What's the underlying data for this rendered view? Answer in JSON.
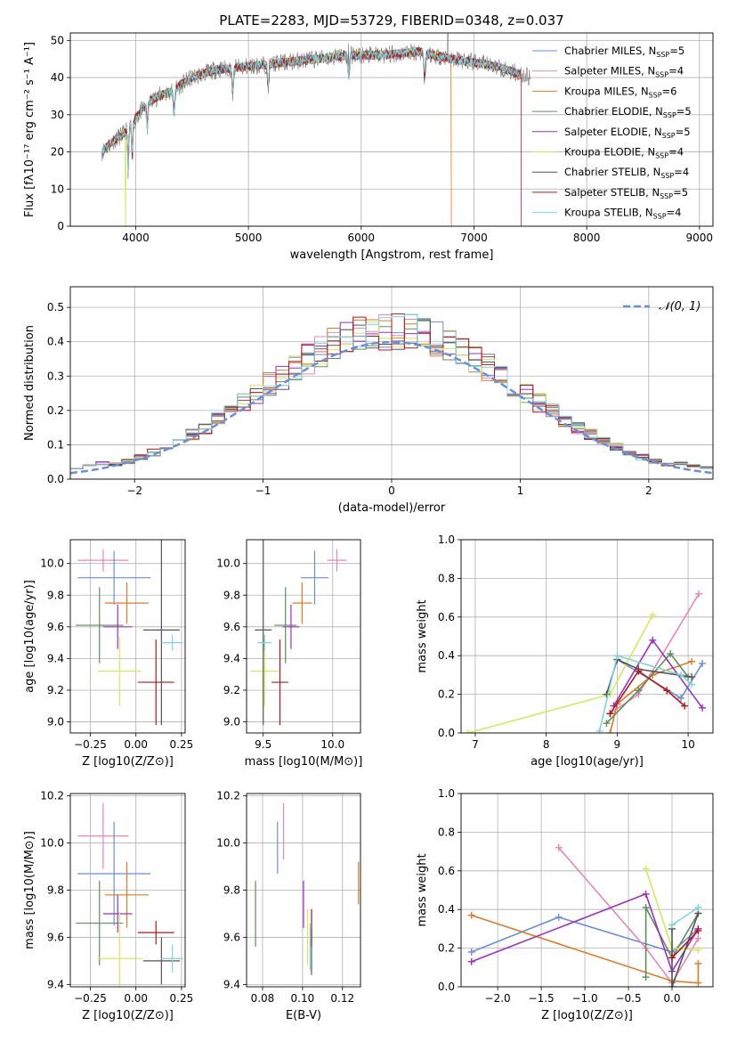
{
  "colors": {
    "Chabrier MILES": "#6a8fd8",
    "Salpeter MILES": "#e587b7",
    "Kroupa MILES": "#e07a25",
    "Chabrier ELODIE": "#5b8f5b",
    "Salpeter ELODIE": "#9b30c0",
    "Kroupa ELODIE": "#d4e85a",
    "Chabrier STELIB": "#555555",
    "Salpeter STELIB": "#b01818",
    "Kroupa STELIB": "#7fd3dd"
  },
  "chart_data": [
    {
      "id": "spectrum",
      "type": "line",
      "title": "PLATE=2283, MJD=53729, FIBERID=0348, z=0.037",
      "xlabel": "wavelength [Angstrom, rest frame]",
      "ylabel": "Flux [fλ10⁻¹⁷ erg cm⁻² s⁻¹ A⁻¹]",
      "xlim": [
        3420,
        9120
      ],
      "ylim": [
        0,
        52
      ],
      "xticks": [
        4000,
        5000,
        6000,
        7000,
        8000,
        9000
      ],
      "yticks": [
        0,
        10,
        20,
        30,
        40,
        50
      ],
      "legend_position": "right",
      "legend": [
        {
          "series": "Chabrier MILES",
          "label": "Chabrier MILES, N",
          "n": "5"
        },
        {
          "series": "Salpeter MILES",
          "label": "Salpeter MILES, N",
          "n": "4"
        },
        {
          "series": "Kroupa MILES",
          "label": "Kroupa MILES, N",
          "n": "6"
        },
        {
          "series": "Chabrier ELODIE",
          "label": "Chabrier ELODIE, N",
          "n": "5"
        },
        {
          "series": "Salpeter ELODIE",
          "label": "Salpeter ELODIE, N",
          "n": "5"
        },
        {
          "series": "Kroupa ELODIE",
          "label": "Kroupa ELODIE, N",
          "n": "4"
        },
        {
          "series": "Chabrier STELIB",
          "label": "Chabrier STELIB, N",
          "n": "4"
        },
        {
          "series": "Salpeter STELIB",
          "label": "Salpeter STELIB, N",
          "n": "5"
        },
        {
          "series": "Kroupa STELIB",
          "label": "Kroupa STELIB, N",
          "n": "4"
        }
      ],
      "legend_sub": "SSP",
      "continuum": {
        "x": [
          3700,
          3800,
          3900,
          4000,
          4100,
          4200,
          4300,
          4400,
          4500,
          4700,
          5000,
          5300,
          5600,
          5900,
          6200,
          6500,
          6800,
          7000,
          7200,
          7500
        ],
        "y": [
          20,
          23,
          25,
          29,
          33,
          35,
          36,
          38,
          40,
          42,
          43,
          44,
          45,
          46,
          46,
          47,
          45,
          44,
          43,
          40
        ]
      },
      "data_span": [
        3700,
        7500
      ],
      "model_span": [
        3700,
        7400
      ],
      "drops": [
        {
          "series": "Kroupa ELODIE",
          "x": 3910
        },
        {
          "series": "Kroupa MILES",
          "x": 6800
        },
        {
          "series": "Salpeter STELIB",
          "x": 7420
        }
      ]
    },
    {
      "id": "residuals",
      "type": "histogram",
      "xlabel": "(data-model)/error",
      "ylabel": "Normed distribution",
      "xlim": [
        -2.5,
        2.5
      ],
      "ylim": [
        0,
        0.56
      ],
      "xticks": [
        -2,
        -1,
        0,
        1,
        2
      ],
      "yticks": [
        0.0,
        0.1,
        0.2,
        0.3,
        0.4,
        0.5
      ],
      "bin_width": 0.1,
      "legend_label": "𝒩(0, 1)",
      "legend_position": "top-right"
    },
    {
      "id": "age_vs_Z",
      "type": "errorbar",
      "xlabel": "Z [log10(Z/Z⊙)]",
      "ylabel": "age  [log10(age/yr)]",
      "xlim": [
        -0.36,
        0.27
      ],
      "ylim": [
        8.93,
        10.15
      ],
      "xticks": [
        -0.25,
        0.0,
        0.25
      ],
      "yticks": [
        9.0,
        9.2,
        9.4,
        9.6,
        9.8,
        10.0
      ],
      "points": [
        {
          "series": "Salpeter MILES",
          "x": -0.18,
          "xerr": 0.14,
          "y": 10.02,
          "yerr": 0.07
        },
        {
          "series": "Chabrier MILES",
          "x": -0.12,
          "xerr": 0.2,
          "y": 9.91,
          "yerr": 0.17
        },
        {
          "series": "Kroupa MILES",
          "x": -0.05,
          "xerr": 0.12,
          "y": 9.75,
          "yerr": 0.13
        },
        {
          "series": "Chabrier ELODIE",
          "x": -0.2,
          "xerr": 0.13,
          "y": 9.61,
          "yerr": 0.24
        },
        {
          "series": "Salpeter ELODIE",
          "x": -0.1,
          "xerr": 0.08,
          "y": 9.6,
          "yerr": 0.14
        },
        {
          "series": "Kroupa ELODIE",
          "x": -0.09,
          "xerr": 0.12,
          "y": 9.32,
          "yerr": 0.22
        },
        {
          "series": "Chabrier STELIB",
          "x": 0.14,
          "xerr": 0.1,
          "y": 9.58,
          "yerr": 0.6
        },
        {
          "series": "Salpeter STELIB",
          "x": 0.11,
          "xerr": 0.1,
          "y": 9.25,
          "yerr": 0.27
        },
        {
          "series": "Kroupa STELIB",
          "x": 0.2,
          "xerr": 0.06,
          "y": 9.5,
          "yerr": 0.05
        }
      ]
    },
    {
      "id": "age_vs_mass",
      "type": "errorbar",
      "xlabel": "mass [log10(M/M⊙)]",
      "ylabel": "",
      "xlim": [
        9.38,
        10.2
      ],
      "ylim": [
        8.93,
        10.15
      ],
      "xticks": [
        9.5,
        10.0
      ],
      "yticks": [
        9.0,
        9.2,
        9.4,
        9.6,
        9.8,
        10.0
      ],
      "points": [
        {
          "series": "Salpeter MILES",
          "x": 10.03,
          "xerr": 0.07,
          "y": 10.02,
          "yerr": 0.07
        },
        {
          "series": "Chabrier MILES",
          "x": 9.87,
          "xerr": 0.1,
          "y": 9.91,
          "yerr": 0.17
        },
        {
          "series": "Kroupa MILES",
          "x": 9.78,
          "xerr": 0.07,
          "y": 9.75,
          "yerr": 0.13
        },
        {
          "series": "Chabrier ELODIE",
          "x": 9.66,
          "xerr": 0.08,
          "y": 9.61,
          "yerr": 0.24
        },
        {
          "series": "Salpeter ELODIE",
          "x": 9.7,
          "xerr": 0.06,
          "y": 9.6,
          "yerr": 0.14
        },
        {
          "series": "Kroupa ELODIE",
          "x": 9.51,
          "xerr": 0.1,
          "y": 9.32,
          "yerr": 0.22
        },
        {
          "series": "Chabrier STELIB",
          "x": 9.5,
          "xerr": 0.06,
          "y": 9.58,
          "yerr": 0.6
        },
        {
          "series": "Salpeter STELIB",
          "x": 9.62,
          "xerr": 0.06,
          "y": 9.25,
          "yerr": 0.27
        },
        {
          "series": "Kroupa STELIB",
          "x": 9.51,
          "xerr": 0.05,
          "y": 9.5,
          "yerr": 0.05
        }
      ]
    },
    {
      "id": "massweight_vs_age",
      "type": "line",
      "xlabel": "age  [log10(age/yr)]",
      "ylabel": "mass weight",
      "xlim": [
        6.8,
        10.35
      ],
      "ylim": [
        0,
        1
      ],
      "xticks": [
        7,
        8,
        9,
        10
      ],
      "yticks": [
        0.0,
        0.2,
        0.4,
        0.6,
        0.8,
        1.0
      ],
      "series": [
        {
          "name": "Chabrier MILES",
          "x": [
            9.0,
            9.9,
            10.2
          ],
          "y": [
            0.38,
            0.18,
            0.36
          ]
        },
        {
          "name": "Salpeter MILES",
          "x": [
            8.9,
            9.3,
            10.15
          ],
          "y": [
            0.1,
            0.2,
            0.72
          ]
        },
        {
          "name": "Kroupa MILES",
          "x": [
            8.9,
            9.0,
            9.5,
            10.05
          ],
          "y": [
            0.0,
            0.15,
            0.3,
            0.37
          ]
        },
        {
          "name": "Chabrier ELODIE",
          "x": [
            8.85,
            9.3,
            9.75,
            10.0
          ],
          "y": [
            0.05,
            0.22,
            0.41,
            0.29
          ]
        },
        {
          "name": "Salpeter ELODIE",
          "x": [
            8.95,
            9.5,
            10.2
          ],
          "y": [
            0.14,
            0.48,
            0.13
          ]
        },
        {
          "name": "Kroupa ELODIE",
          "x": [
            6.9,
            8.9,
            9.5
          ],
          "y": [
            0.0,
            0.2,
            0.61
          ]
        },
        {
          "name": "Chabrier STELIB",
          "x": [
            8.85,
            9.0,
            9.3,
            10.05
          ],
          "y": [
            0.2,
            0.38,
            0.33,
            0.29
          ]
        },
        {
          "name": "Salpeter STELIB",
          "x": [
            8.9,
            9.3,
            9.7,
            9.95
          ],
          "y": [
            0.1,
            0.32,
            0.22,
            0.14
          ]
        },
        {
          "name": "Kroupa STELIB",
          "x": [
            8.75,
            9.0,
            9.9,
            10.05
          ],
          "y": [
            0.01,
            0.4,
            0.3,
            0.25
          ]
        }
      ]
    },
    {
      "id": "mass_vs_Z",
      "type": "errorbar",
      "xlabel": "Z [log10(Z/Z⊙)]",
      "ylabel": "mass [log10(M/M⊙)]",
      "xlim": [
        -0.36,
        0.27
      ],
      "ylim": [
        9.39,
        10.21
      ],
      "xticks": [
        -0.25,
        0.0,
        0.25
      ],
      "yticks": [
        9.4,
        9.6,
        9.8,
        10.0,
        10.2
      ],
      "points": [
        {
          "series": "Salpeter MILES",
          "x": -0.18,
          "xerr": 0.14,
          "y": 10.03,
          "yerr": 0.14
        },
        {
          "series": "Chabrier MILES",
          "x": -0.12,
          "xerr": 0.2,
          "y": 9.87,
          "yerr": 0.22
        },
        {
          "series": "Kroupa MILES",
          "x": -0.05,
          "xerr": 0.12,
          "y": 9.78,
          "yerr": 0.14
        },
        {
          "series": "Chabrier ELODIE",
          "x": -0.2,
          "xerr": 0.13,
          "y": 9.66,
          "yerr": 0.18
        },
        {
          "series": "Salpeter ELODIE",
          "x": -0.1,
          "xerr": 0.08,
          "y": 9.7,
          "yerr": 0.08
        },
        {
          "series": "Kroupa ELODIE",
          "x": -0.09,
          "xerr": 0.12,
          "y": 9.51,
          "yerr": 0.2
        },
        {
          "series": "Chabrier STELIB",
          "x": 0.14,
          "xerr": 0.1,
          "y": 9.5,
          "yerr": 0.1
        },
        {
          "series": "Salpeter STELIB",
          "x": 0.11,
          "xerr": 0.1,
          "y": 9.62,
          "yerr": 0.05
        },
        {
          "series": "Kroupa STELIB",
          "x": 0.2,
          "xerr": 0.06,
          "y": 9.51,
          "yerr": 0.06
        }
      ]
    },
    {
      "id": "mass_vs_EBV",
      "type": "errorbar",
      "xlabel": "E(B-V)",
      "ylabel": "",
      "xlim": [
        0.072,
        0.129
      ],
      "ylim": [
        9.39,
        10.21
      ],
      "xticks": [
        0.08,
        0.1,
        0.12
      ],
      "yticks": [
        9.4,
        9.6,
        9.8,
        10.0,
        10.2
      ],
      "points": [
        {
          "series": "Salpeter MILES",
          "x": 0.0905,
          "xerr": 0,
          "y": 10.05,
          "yerr": 0.12
        },
        {
          "series": "Chabrier MILES",
          "x": 0.0875,
          "xerr": 0,
          "y": 9.98,
          "yerr": 0.11
        },
        {
          "series": "Kroupa MILES",
          "x": 0.128,
          "xerr": 0,
          "y": 9.83,
          "yerr": 0.09
        },
        {
          "series": "Chabrier ELODIE",
          "x": 0.0765,
          "xerr": 0,
          "y": 9.7,
          "yerr": 0.14
        },
        {
          "series": "Salpeter ELODIE",
          "x": 0.1005,
          "xerr": 0,
          "y": 9.74,
          "yerr": 0.1
        },
        {
          "series": "Kroupa ELODIE",
          "x": 0.1025,
          "xerr": 0,
          "y": 9.6,
          "yerr": 0.12
        },
        {
          "series": "Chabrier STELIB",
          "x": 0.1045,
          "xerr": 0,
          "y": 9.54,
          "yerr": 0.1
        },
        {
          "series": "Salpeter STELIB",
          "x": 0.1045,
          "xerr": 0,
          "y": 9.64,
          "yerr": 0.08
        },
        {
          "series": "Kroupa STELIB",
          "x": 0.1038,
          "xerr": 0,
          "y": 9.56,
          "yerr": 0.1
        }
      ]
    },
    {
      "id": "massweight_vs_Z",
      "type": "line",
      "xlabel": "Z [log10(Z/Z⊙)]",
      "ylabel": "mass weight",
      "xlim": [
        -2.42,
        0.47
      ],
      "ylim": [
        0,
        1
      ],
      "xticks": [
        -2.0,
        -1.5,
        -1.0,
        -0.5,
        0.0
      ],
      "yticks": [
        0.0,
        0.2,
        0.4,
        0.6,
        0.8,
        1.0
      ],
      "series": [
        {
          "name": "Chabrier MILES",
          "x": [
            -2.3,
            -1.3,
            0.0,
            0.3
          ],
          "y": [
            0.18,
            0.36,
            0.18,
            0.3
          ]
        },
        {
          "name": "Salpeter MILES",
          "x": [
            -1.3,
            -0.3,
            0.0,
            0.3
          ],
          "y": [
            0.72,
            0.2,
            0.02,
            0.25
          ]
        },
        {
          "name": "Kroupa MILES",
          "x": [
            -2.3,
            0.0,
            0.3,
            0.3
          ],
          "y": [
            0.37,
            0.03,
            0.02,
            0.12
          ]
        },
        {
          "name": "Chabrier ELODIE",
          "x": [
            -0.3,
            -0.3,
            0.0,
            0.3
          ],
          "y": [
            0.05,
            0.41,
            0.15,
            0.38
          ]
        },
        {
          "name": "Salpeter ELODIE",
          "x": [
            -2.3,
            -0.3,
            0.0,
            0.3
          ],
          "y": [
            0.13,
            0.48,
            0.08,
            0.3
          ]
        },
        {
          "name": "Kroupa ELODIE",
          "x": [
            -0.3,
            0.0,
            0.3
          ],
          "y": [
            0.61,
            0.2,
            0.19
          ]
        },
        {
          "name": "Chabrier STELIB",
          "x": [
            0.0,
            0.0,
            0.3
          ],
          "y": [
            0.3,
            0.0,
            0.38
          ]
        },
        {
          "name": "Salpeter STELIB",
          "x": [
            0.0,
            0.3
          ],
          "y": [
            0.15,
            0.29
          ]
        },
        {
          "name": "Kroupa STELIB",
          "x": [
            0.0,
            0.3
          ],
          "y": [
            0.32,
            0.41
          ]
        }
      ]
    }
  ]
}
